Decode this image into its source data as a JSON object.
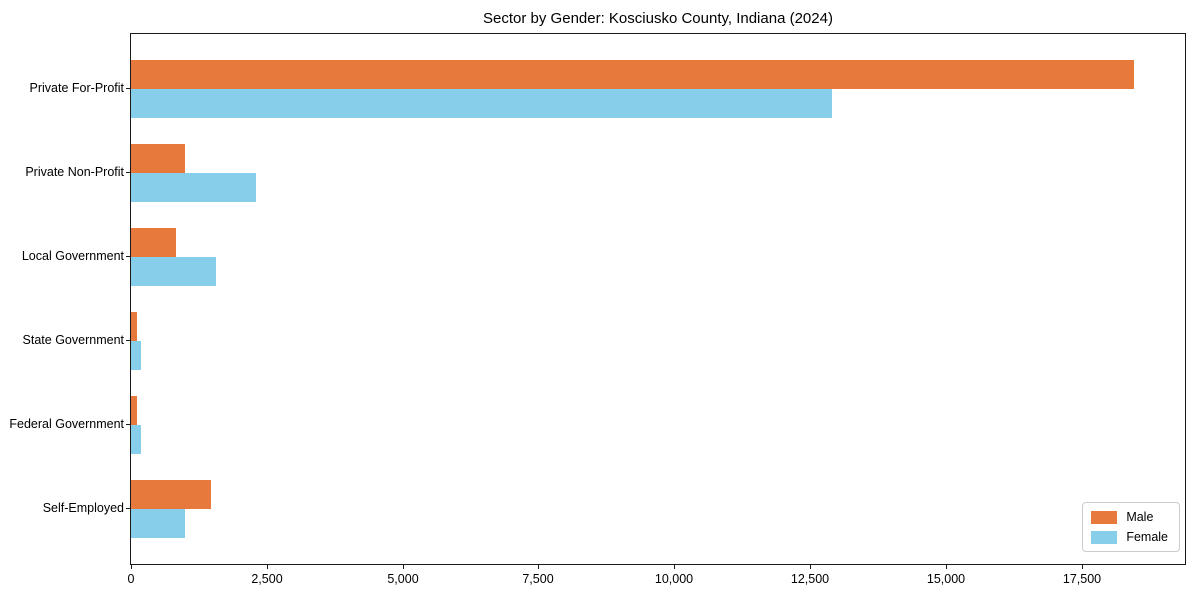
{
  "chart_data": {
    "type": "bar",
    "orientation": "horizontal",
    "title": "Sector by Gender: Kosciusko County, Indiana (2024)",
    "categories": [
      "Private For-Profit",
      "Private Non-Profit",
      "Local Government",
      "State Government",
      "Federal Government",
      "Self-Employed"
    ],
    "series": [
      {
        "name": "Male",
        "color": "#e8793d",
        "values": [
          18470,
          990,
          820,
          115,
          110,
          1480
        ]
      },
      {
        "name": "Female",
        "color": "#87ceeb",
        "values": [
          12900,
          2300,
          1560,
          185,
          185,
          1000
        ]
      }
    ],
    "xlabel": "",
    "ylabel": "",
    "xlim": [
      0,
      19400
    ],
    "xticks": [
      0,
      2500,
      5000,
      7500,
      10000,
      12500,
      15000,
      17500
    ],
    "xtick_labels": [
      "0",
      "2,500",
      "5,000",
      "7,500",
      "10,000",
      "12,500",
      "15,000",
      "17,500"
    ],
    "legend_position": "lower right",
    "grid": false
  }
}
